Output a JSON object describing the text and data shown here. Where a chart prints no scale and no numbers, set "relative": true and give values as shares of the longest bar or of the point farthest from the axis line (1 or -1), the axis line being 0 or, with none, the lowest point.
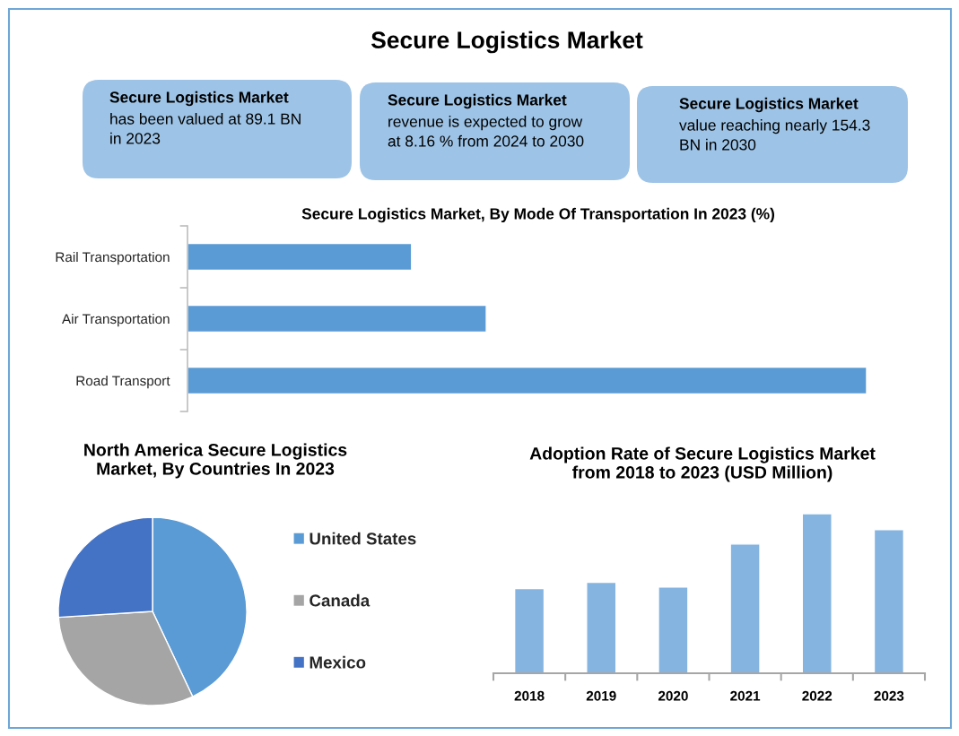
{
  "chart_data": [
    {
      "type": "other",
      "title": "Secure Logistics Market"
    },
    {
      "type": "other",
      "title": "Secure Logistics Market",
      "annotations": [
        "has been valued at 89.1 BN in 2023"
      ]
    },
    {
      "type": "other",
      "title": "Secure Logistics Market",
      "annotations": [
        "revenue is expected to grow at 8.16 % from 2024 to 2030"
      ]
    },
    {
      "type": "other",
      "title": "Secure Logistics Market",
      "annotations": [
        "value reaching nearly 154.3 BN in 2030"
      ]
    },
    {
      "type": "bar",
      "orientation": "horizontal",
      "title": "Secure Logistics Market, By Mode Of Transportation In 2023 (%)",
      "categories": [
        "Rail Transportation",
        "Air Transportation",
        "Road Transport"
      ],
      "values": [
        0.33,
        0.44,
        1
      ],
      "color": "#5b9bd5",
      "relative": true
    },
    {
      "type": "pie",
      "title": "North America Secure Logistics Market, By Countries In 2023",
      "categories": [
        "United States",
        "Canada",
        "Mexico"
      ],
      "values": [
        43,
        31,
        26
      ],
      "colors": [
        "#5b9bd5",
        "#a5a5a5",
        "#4472c4"
      ],
      "legend": "right"
    },
    {
      "type": "bar",
      "title": "Adoption Rate of Secure Logistics Market from 2018 to 2023 (USD Million)",
      "categories": [
        "2018",
        "2019",
        "2020",
        "2021",
        "2022",
        "2023"
      ],
      "values": [
        0.53,
        0.57,
        0.54,
        0.81,
        1,
        0.9
      ],
      "color": "#85b4e0",
      "relative": true
    }
  ]
}
